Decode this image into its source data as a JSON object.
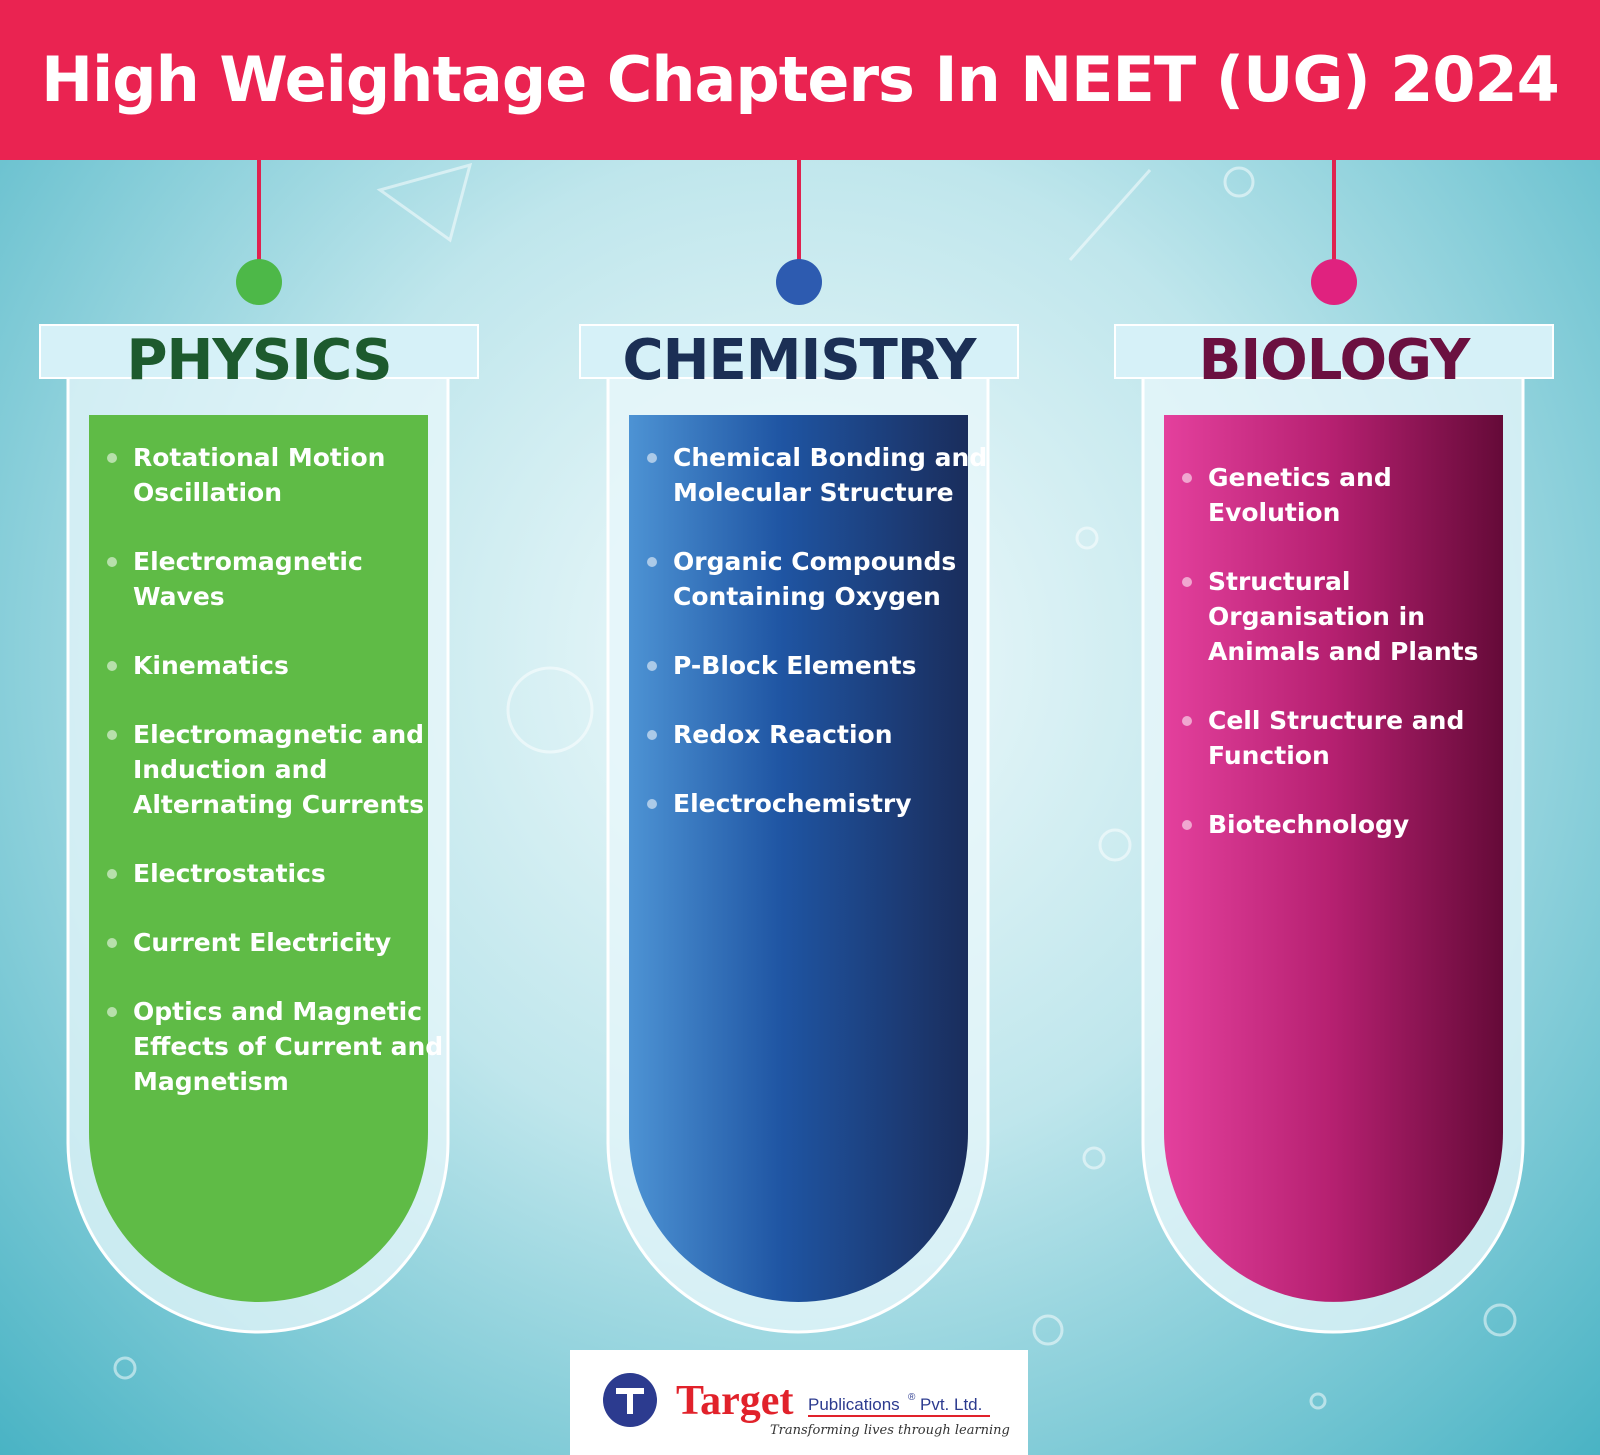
{
  "header": {
    "title": "High Weightage Chapters In NEET (UG) 2024"
  },
  "columns": [
    {
      "heading": "PHYSICS",
      "items": [
        "Rotational Motion Oscillation",
        "Electromagnetic Waves",
        "Kinematics",
        "Electromagnetic and Induction and Alternating Currents",
        "Electrostatics",
        "Current Electricity",
        "Optics and Magnetic Effects of Current and Magnetism"
      ]
    },
    {
      "heading": "CHEMISTRY",
      "items": [
        "Chemical Bonding and Molecular Structure",
        "Organic Compounds Containing Oxygen",
        "P-Block Elements",
        "Redox Reaction",
        "Electrochemistry"
      ]
    },
    {
      "heading": "BIOLOGY",
      "items": [
        "Genetics and Evolution",
        "Structural Organisation in Animals and Plants",
        "Cell Structure and Function",
        "Biotechnology"
      ]
    }
  ],
  "footer": {
    "brand": "Target",
    "publisher": "Publications",
    "registered": "®",
    "suffix": "Pvt. Ltd.",
    "tagline": "Transforming lives through learning"
  }
}
